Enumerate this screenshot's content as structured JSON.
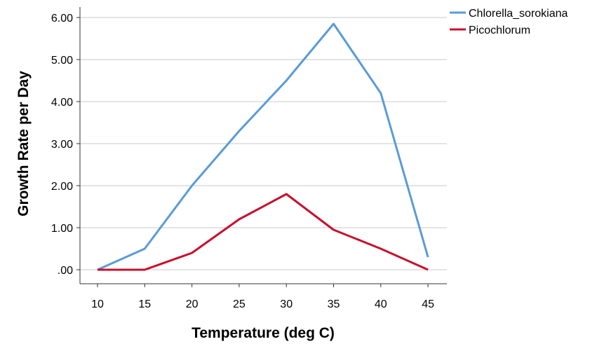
{
  "chart_data": {
    "type": "line",
    "title": "",
    "xlabel": "Temperature (deg C)",
    "ylabel": "Growth Rate per Day",
    "x": [
      10,
      15,
      20,
      25,
      30,
      35,
      40,
      45
    ],
    "x_tick_labels": [
      "10",
      "15",
      "20",
      "25",
      "30",
      "35",
      "40",
      "45"
    ],
    "ylim": [
      0,
      6
    ],
    "y_ticks": [
      0,
      1,
      2,
      3,
      4,
      5,
      6
    ],
    "y_tick_labels": [
      ".00",
      "1.00",
      "2.00",
      "3.00",
      "4.00",
      "5.00",
      "6.00"
    ],
    "grid": "horizontal",
    "legend": "top-right",
    "series": [
      {
        "name": "Chlorella_sorokiana",
        "color": "#5b9bd5",
        "values": [
          0.0,
          0.5,
          2.0,
          3.3,
          4.5,
          5.85,
          4.2,
          0.3
        ]
      },
      {
        "name": "Picochlorum",
        "color": "#c8102e",
        "values": [
          0.0,
          0.0,
          0.4,
          1.2,
          1.8,
          0.95,
          0.5,
          0.0
        ]
      }
    ]
  }
}
